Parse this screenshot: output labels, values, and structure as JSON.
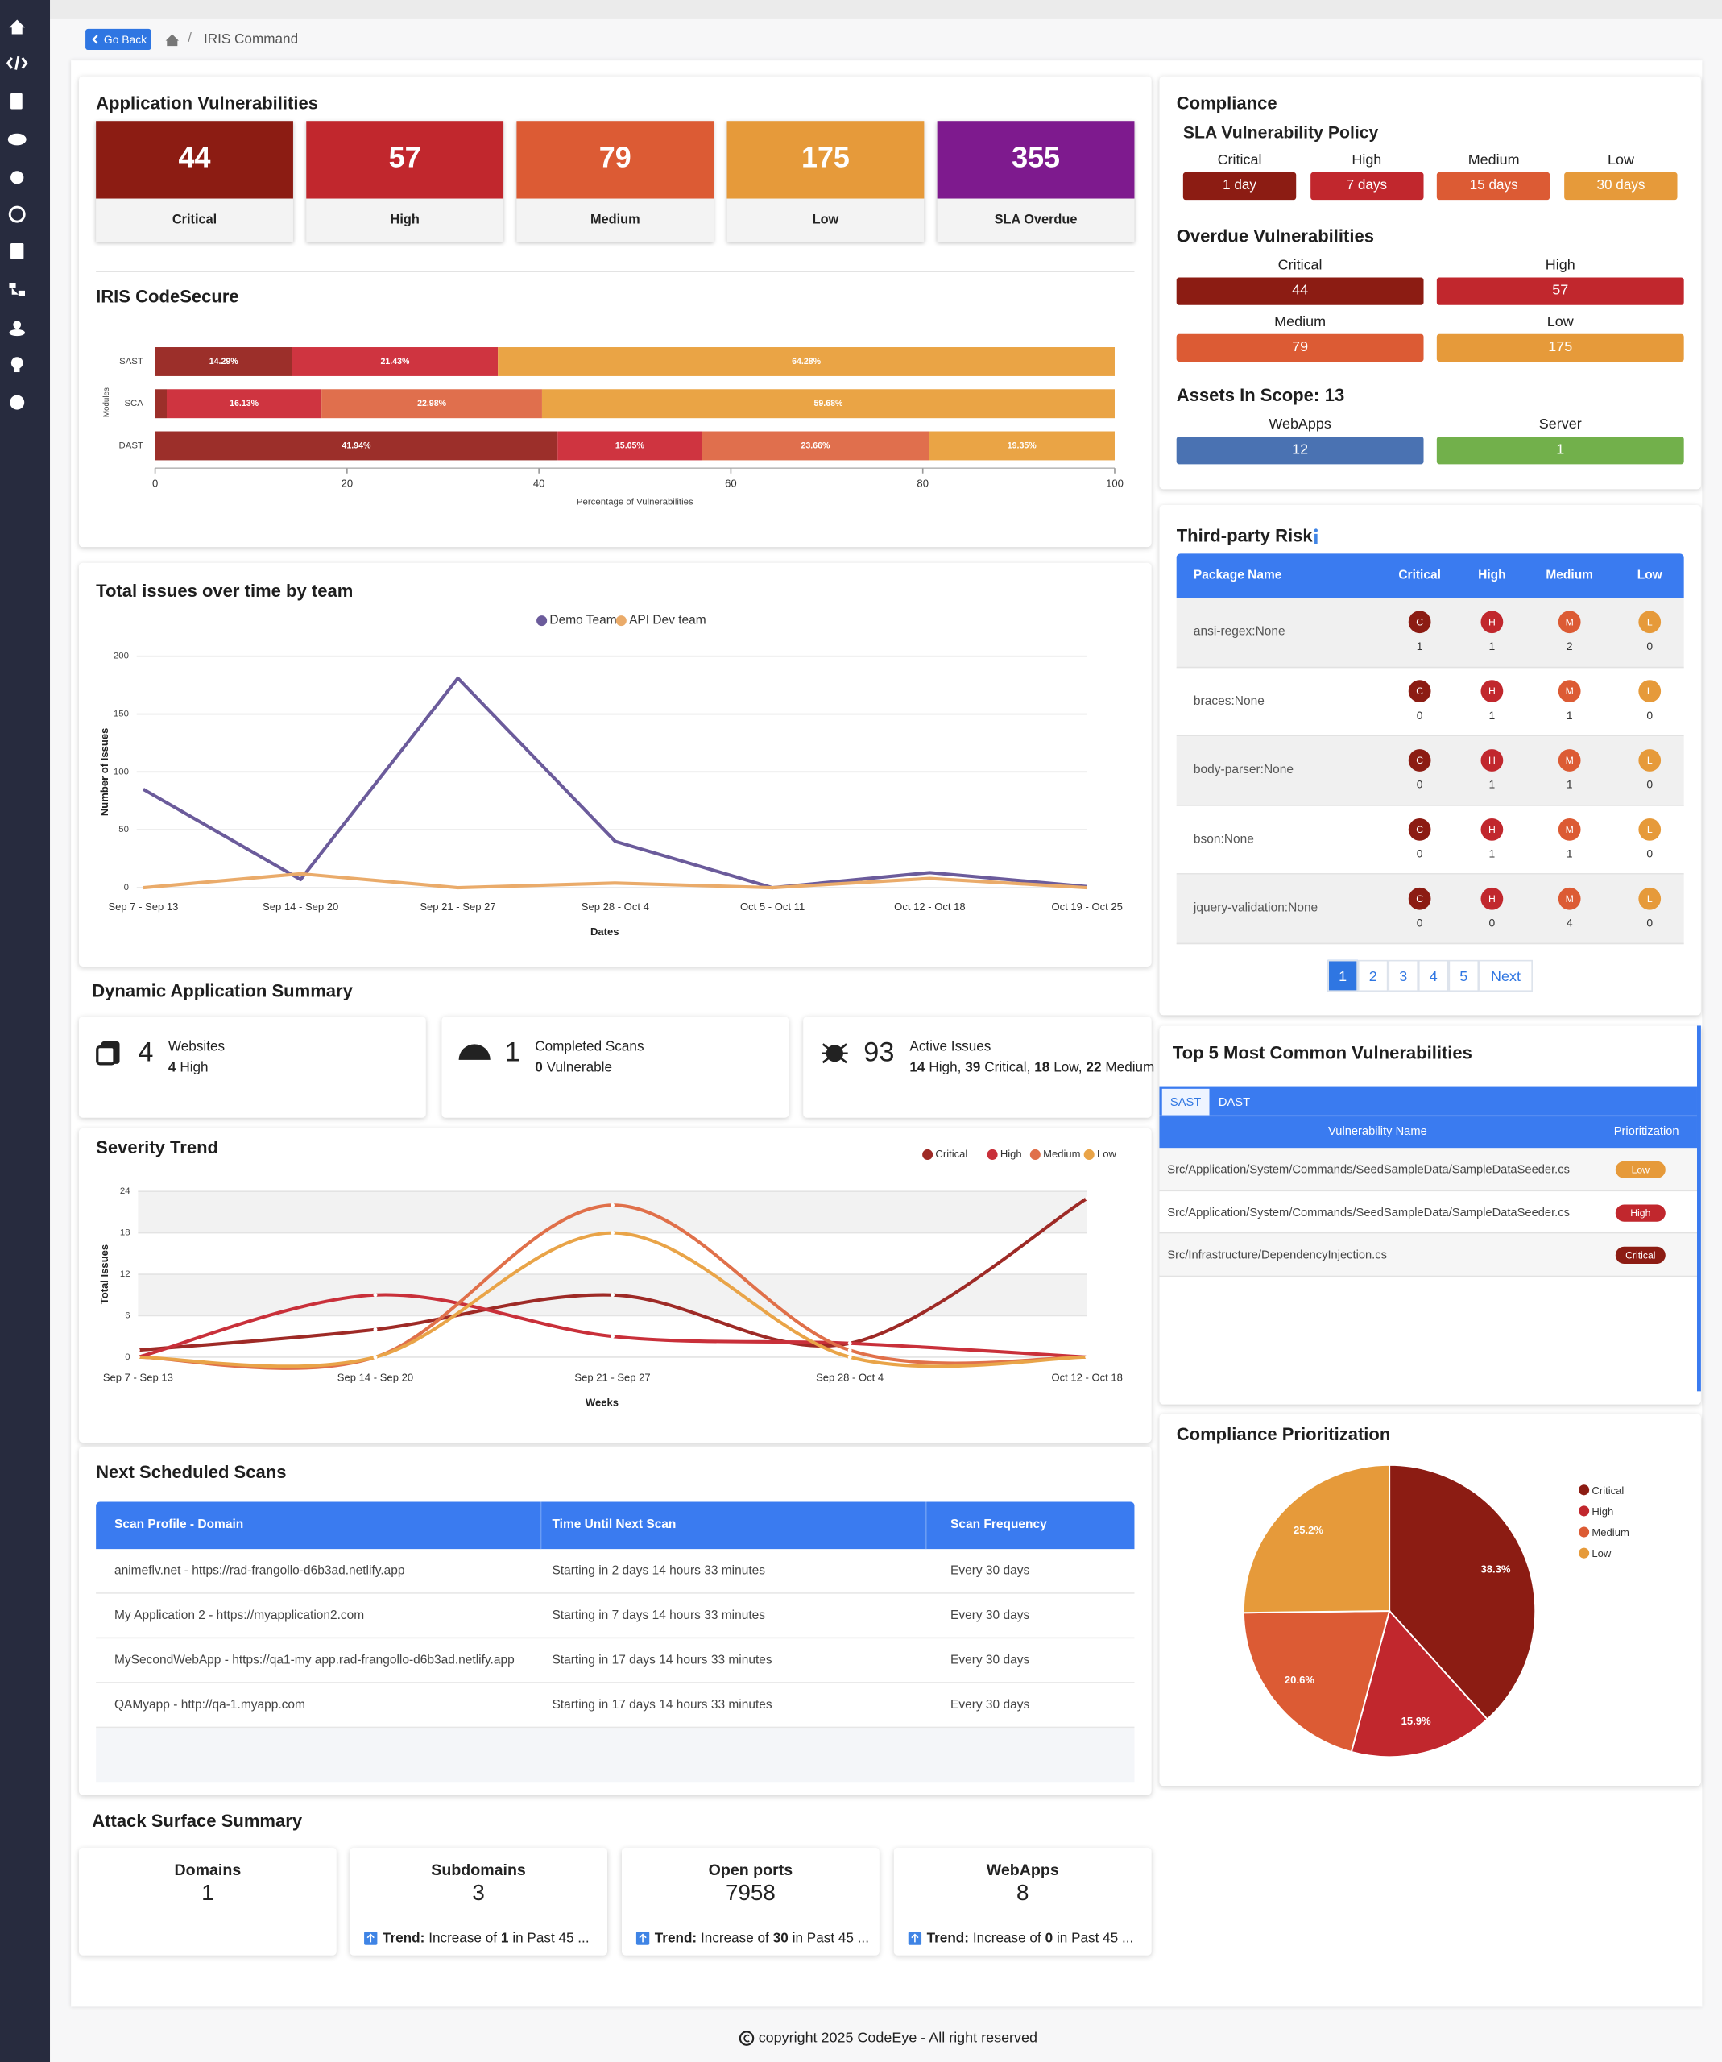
{
  "nav": {
    "back": "Go Back",
    "separator": "/",
    "crumb": "IRIS Command"
  },
  "app_vulns": {
    "title": "Application Vulnerabilities",
    "cards": [
      {
        "value": 44,
        "label": "Critical",
        "color": "#8c1c13"
      },
      {
        "value": 57,
        "label": "High",
        "color": "#c1272d"
      },
      {
        "value": 79,
        "label": "Medium",
        "color": "#dc5b34"
      },
      {
        "value": 175,
        "label": "Low",
        "color": "#e69a3a"
      },
      {
        "value": 355,
        "label": "SLA Overdue",
        "color": "#7e1a8e"
      }
    ]
  },
  "codesecure": {
    "type": "bar",
    "orientation": "horizontal",
    "stacked": true,
    "title": "IRIS CodeSecure",
    "categories": [
      "SAST",
      "SCA",
      "DAST"
    ],
    "series": [
      {
        "color": "#9c2f2a",
        "values": [
          14.29,
          1.21,
          41.94
        ],
        "value_labels": [
          "14.29%",
          null,
          "41.94%"
        ]
      },
      {
        "color": "#cf3440",
        "values": [
          21.43,
          16.13,
          15.05
        ],
        "value_labels": [
          "21.43%",
          "16.13%",
          "15.05%"
        ]
      },
      {
        "color": "#e06f4d",
        "values": [
          0,
          22.98,
          23.66
        ],
        "value_labels": [
          null,
          "22.98%",
          "23.66%"
        ]
      },
      {
        "color": "#eaa445",
        "values": [
          64.28,
          59.68,
          19.35
        ],
        "value_labels": [
          "64.28%",
          "59.68%",
          "19.35%"
        ]
      }
    ],
    "xlim": [
      0,
      100
    ],
    "xticks": [
      0,
      20,
      40,
      60,
      80,
      100
    ],
    "xlabel": "Percentage of Vulnerabilities",
    "ylabel": "Modules"
  },
  "issues_trend": {
    "type": "line",
    "title": "Total issues over time by team",
    "categories": [
      "Sep 7 - Sep 13",
      "Sep 14 - Sep 20",
      "Sep 21 - Sep 27",
      "Sep 28 - Oct 4",
      "Oct 5 - Oct 11",
      "Oct 12 - Oct 18",
      "Oct 19 - Oct 25"
    ],
    "series": [
      {
        "name": "Demo Team",
        "color": "#6b5b9b",
        "values": [
          85,
          7,
          181,
          40,
          0,
          13,
          1
        ]
      },
      {
        "name": "API Dev team",
        "color": "#eaab6a",
        "values": [
          0,
          12,
          0,
          4,
          0,
          8,
          0
        ]
      }
    ],
    "ylim": [
      0,
      200
    ],
    "yticks": [
      0,
      50,
      100,
      150,
      200
    ],
    "xlabel": "Dates",
    "ylabel": "Number of Issues",
    "grid": true,
    "legend": "top"
  },
  "dynamic_summary": {
    "title": "Dynamic Application Summary",
    "cards": [
      {
        "count": 4,
        "label": "Websites",
        "details": [
          {
            "value": 4,
            "label": "High"
          }
        ]
      },
      {
        "count": 1,
        "label": "Completed Scans",
        "details": [
          {
            "value": 0,
            "label": "Vulnerable"
          }
        ]
      },
      {
        "count": 93,
        "label": "Active Issues",
        "details": [
          {
            "value": 14,
            "label": "High,"
          },
          {
            "value": 39,
            "label": "Critical,"
          },
          {
            "value": 18,
            "label": "Low,"
          },
          {
            "value": 22,
            "label": "Medium"
          }
        ]
      }
    ]
  },
  "severity_trend": {
    "type": "line",
    "smooth": true,
    "title": "Severity Trend",
    "categories": [
      "Sep 7 - Sep 13",
      "Sep 14 - Sep 20",
      "Sep 21 - Sep 27",
      "Sep 28 - Oct 4",
      "Oct 12 - Oct 18"
    ],
    "series": [
      {
        "name": "Critical",
        "color": "#9e2a26",
        "values": [
          1,
          4,
          9,
          2,
          23
        ]
      },
      {
        "name": "High",
        "color": "#c9303a",
        "values": [
          0,
          9,
          3,
          2,
          0
        ]
      },
      {
        "name": "Medium",
        "color": "#e0704a",
        "values": [
          0,
          0,
          22,
          1,
          0
        ]
      },
      {
        "name": "Low",
        "color": "#e9a448",
        "values": [
          0,
          0,
          18,
          0,
          0
        ]
      }
    ],
    "ylim": [
      0,
      24
    ],
    "yticks": [
      0,
      6,
      12,
      18,
      24
    ],
    "xlabel": "Weeks",
    "ylabel": "Total Issues",
    "grid": true,
    "legend": "top-right"
  },
  "scans": {
    "title": "Next Scheduled Scans",
    "columns": [
      "Scan Profile - Domain",
      "Time Until Next Scan",
      "Scan Frequency"
    ],
    "rows": [
      [
        "animeflv.net - https://rad-frangollo-d6b3ad.netlify.app",
        "Starting in 2 days 14 hours 33 minutes",
        "Every 30 days"
      ],
      [
        "My Application 2 - https://myapplication2.com",
        "Starting in 7 days 14 hours 33 minutes",
        "Every 30 days"
      ],
      [
        "MySecondWebApp - https://qa1-my app.rad-frangollo-d6b3ad.netlify.app",
        "Starting in 17 days 14 hours 33 minutes",
        "Every 30 days"
      ],
      [
        "QAMyapp - http://qa-1.myapp.com",
        "Starting in 17 days 14 hours 33 minutes",
        "Every 30 days"
      ]
    ]
  },
  "attack_surface": {
    "title": "Attack Surface Summary",
    "cards": [
      {
        "label": "Domains",
        "value": 1
      },
      {
        "label": "Subdomains",
        "value": 3,
        "trend": {
          "label": "Trend:",
          "text": "Increase of",
          "value": 1,
          "suffix": "in Past 45 ..."
        }
      },
      {
        "label": "Open ports",
        "value": 7958,
        "trend": {
          "label": "Trend:",
          "text": "Increase of",
          "value": 30,
          "suffix": "in Past 45 ..."
        }
      },
      {
        "label": "WebApps",
        "value": 8,
        "trend": {
          "label": "Trend:",
          "text": "Increase of",
          "value": 0,
          "suffix": "in Past 45 ..."
        }
      }
    ]
  },
  "compliance": {
    "title": "Compliance",
    "sla_title": "SLA Vulnerability Policy",
    "sla": [
      {
        "label": "Critical",
        "text": "1 day",
        "color": "#8c1c13"
      },
      {
        "label": "High",
        "text": "7 days",
        "color": "#c1272d"
      },
      {
        "label": "Medium",
        "text": "15 days",
        "color": "#dc5b34"
      },
      {
        "label": "Low",
        "text": "30 days",
        "color": "#e69a3a"
      }
    ],
    "overdue_title": "Overdue Vulnerabilities",
    "overdue": [
      {
        "label": "Critical",
        "value": 44,
        "color": "#8c1c13"
      },
      {
        "label": "High",
        "value": 57,
        "color": "#c1272d"
      },
      {
        "label": "Medium",
        "value": 79,
        "color": "#dc5b34"
      },
      {
        "label": "Low",
        "value": 175,
        "color": "#e69a3a"
      }
    ],
    "assets_title": "Assets In Scope:",
    "assets_total": 13,
    "assets": [
      {
        "label": "WebApps",
        "value": 12,
        "color": "#4a72b2"
      },
      {
        "label": "Server",
        "value": 1,
        "color": "#72b04b"
      }
    ]
  },
  "third_party": {
    "title": "Third-party Risk",
    "columns": [
      "Package Name",
      "Critical",
      "High",
      "Medium",
      "Low"
    ],
    "badges": [
      "C",
      "H",
      "M",
      "L"
    ],
    "badge_colors": [
      "#8c1c13",
      "#c1272d",
      "#dc5b34",
      "#e69a3a"
    ],
    "rows": [
      {
        "name": "ansi-regex:None",
        "counts": [
          1,
          1,
          2,
          0
        ]
      },
      {
        "name": "braces:None",
        "counts": [
          0,
          1,
          1,
          0
        ]
      },
      {
        "name": "body-parser:None",
        "counts": [
          0,
          1,
          1,
          0
        ]
      },
      {
        "name": "bson:None",
        "counts": [
          0,
          1,
          1,
          0
        ]
      },
      {
        "name": "jquery-validation:None",
        "counts": [
          0,
          0,
          4,
          0
        ]
      }
    ],
    "pages": [
      1,
      2,
      3,
      4,
      5
    ],
    "active_page": 1,
    "next": "Next"
  },
  "top_vulns": {
    "title": "Top 5 Most Common Vulnerabilities",
    "tabs": [
      "SAST",
      "DAST"
    ],
    "active_tab": 0,
    "columns": [
      "Vulnerability Name",
      "Prioritization"
    ],
    "rows": [
      {
        "name": "Src/Application/System/Commands/SeedSampleData/SampleDataSeeder.cs",
        "priority": "Low",
        "color": "#e69a3a"
      },
      {
        "name": "Src/Application/System/Commands/SeedSampleData/SampleDataSeeder.cs",
        "priority": "High",
        "color": "#c1272d"
      },
      {
        "name": "Src/Infrastructure/DependencyInjection.cs",
        "priority": "Critical",
        "color": "#8c1c13"
      }
    ]
  },
  "prioritization": {
    "type": "pie",
    "title": "Compliance Prioritization",
    "categories": [
      "Critical",
      "High",
      "Medium",
      "Low"
    ],
    "values": [
      38.3,
      15.9,
      20.6,
      25.2
    ],
    "value_labels": [
      "38.3%",
      "15.9%",
      "20.6%",
      "25.2%"
    ],
    "colors": [
      "#8c1c13",
      "#c1272d",
      "#dc5b34",
      "#e69a3a"
    ],
    "legend": "right"
  },
  "footer": "copyright 2025 CodeEye - All right reserved"
}
